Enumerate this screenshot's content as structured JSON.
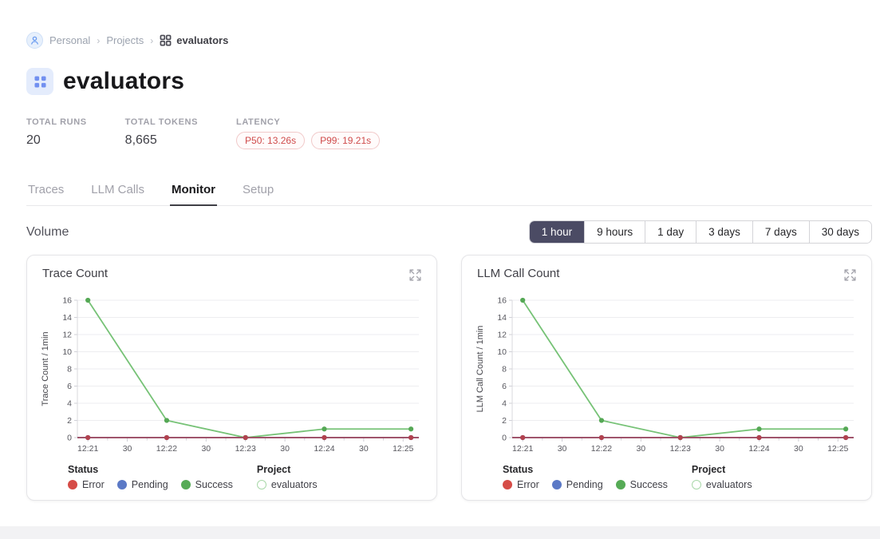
{
  "breadcrumb": {
    "separator": "›",
    "items": [
      {
        "label": "Personal"
      },
      {
        "label": "Projects"
      },
      {
        "label": "evaluators"
      }
    ]
  },
  "header": {
    "title": "evaluators"
  },
  "stats": {
    "runs": {
      "label": "TOTAL RUNS",
      "value": "20"
    },
    "tokens": {
      "label": "TOTAL TOKENS",
      "value": "8,665"
    },
    "latency": {
      "label": "LATENCY",
      "pills": [
        {
          "label": "P50: 13.26s"
        },
        {
          "label": "P99: 19.21s"
        }
      ]
    }
  },
  "tabs": [
    {
      "label": "Traces",
      "active": false
    },
    {
      "label": "LLM Calls",
      "active": false
    },
    {
      "label": "Monitor",
      "active": true
    },
    {
      "label": "Setup",
      "active": false
    }
  ],
  "section": {
    "title": "Volume"
  },
  "time_ranges": [
    {
      "label": "1 hour",
      "selected": true
    },
    {
      "label": "9 hours",
      "selected": false
    },
    {
      "label": "1 day",
      "selected": false
    },
    {
      "label": "3 days",
      "selected": false
    },
    {
      "label": "7 days",
      "selected": false
    },
    {
      "label": "30 days",
      "selected": false
    }
  ],
  "legend": {
    "groups": [
      {
        "title": "Status",
        "items": [
          {
            "label": "Error",
            "color": "#d64c47",
            "type": "filled"
          },
          {
            "label": "Pending",
            "color": "#5b79c6",
            "type": "filled"
          },
          {
            "label": "Success",
            "color": "#56ab56",
            "type": "filled"
          }
        ]
      },
      {
        "title": "Project",
        "items": [
          {
            "label": "evaluators",
            "color": "#a9d8a9",
            "type": "hollow"
          }
        ]
      }
    ]
  },
  "chart_data": [
    {
      "type": "line",
      "title": "Trace Count",
      "ylabel": "Trace Count / 1min",
      "ylim": [
        0,
        16
      ],
      "ytick_step": 2,
      "grid": true,
      "legend_position": "bottom",
      "xlim_seconds": [
        -8,
        252
      ],
      "x_seconds": [
        0,
        60,
        120,
        180,
        246
      ],
      "x_labels": [
        "12:21",
        "12:22",
        "12:23",
        "12:24",
        "12:25"
      ],
      "xticks": [
        {
          "t": 0,
          "label": "12:21"
        },
        {
          "t": 15,
          "label": ""
        },
        {
          "t": 30,
          "label": "30"
        },
        {
          "t": 45,
          "label": ""
        },
        {
          "t": 60,
          "label": "12:22"
        },
        {
          "t": 75,
          "label": ""
        },
        {
          "t": 90,
          "label": "30"
        },
        {
          "t": 105,
          "label": ""
        },
        {
          "t": 120,
          "label": "12:23"
        },
        {
          "t": 135,
          "label": ""
        },
        {
          "t": 150,
          "label": "30"
        },
        {
          "t": 165,
          "label": ""
        },
        {
          "t": 180,
          "label": "12:24"
        },
        {
          "t": 195,
          "label": ""
        },
        {
          "t": 210,
          "label": "30"
        },
        {
          "t": 225,
          "label": ""
        },
        {
          "t": 240,
          "label": "12:25"
        }
      ],
      "series": [
        {
          "name": "Pending",
          "color": "#5b79c6",
          "dot_color": "#5b79c6",
          "values": [
            0,
            0,
            0,
            0,
            0
          ],
          "full_width": true
        },
        {
          "name": "Success",
          "color": "#76c276",
          "dot_color": "#55a855",
          "values": [
            16,
            2,
            0,
            1,
            1
          ],
          "full_width": false
        },
        {
          "name": "Error",
          "color": "#a34a5e",
          "dot_color": "#b2424e",
          "values": [
            0,
            0,
            0,
            0,
            0
          ],
          "full_width": true
        }
      ]
    },
    {
      "type": "line",
      "title": "LLM Call Count",
      "ylabel": "LLM Call Count / 1min",
      "ylim": [
        0,
        16
      ],
      "ytick_step": 2,
      "grid": true,
      "legend_position": "bottom",
      "xlim_seconds": [
        -8,
        252
      ],
      "x_seconds": [
        0,
        60,
        120,
        180,
        246
      ],
      "x_labels": [
        "12:21",
        "12:22",
        "12:23",
        "12:24",
        "12:25"
      ],
      "xticks": [
        {
          "t": 0,
          "label": "12:21"
        },
        {
          "t": 15,
          "label": ""
        },
        {
          "t": 30,
          "label": "30"
        },
        {
          "t": 45,
          "label": ""
        },
        {
          "t": 60,
          "label": "12:22"
        },
        {
          "t": 75,
          "label": ""
        },
        {
          "t": 90,
          "label": "30"
        },
        {
          "t": 105,
          "label": ""
        },
        {
          "t": 120,
          "label": "12:23"
        },
        {
          "t": 135,
          "label": ""
        },
        {
          "t": 150,
          "label": "30"
        },
        {
          "t": 165,
          "label": ""
        },
        {
          "t": 180,
          "label": "12:24"
        },
        {
          "t": 195,
          "label": ""
        },
        {
          "t": 210,
          "label": "30"
        },
        {
          "t": 225,
          "label": ""
        },
        {
          "t": 240,
          "label": "12:25"
        }
      ],
      "series": [
        {
          "name": "Pending",
          "color": "#5b79c6",
          "dot_color": "#5b79c6",
          "values": [
            0,
            0,
            0,
            0,
            0
          ],
          "full_width": true
        },
        {
          "name": "Success",
          "color": "#76c276",
          "dot_color": "#55a855",
          "values": [
            16,
            2,
            0,
            1,
            1
          ],
          "full_width": false
        },
        {
          "name": "Error",
          "color": "#a34a5e",
          "dot_color": "#b2424e",
          "values": [
            0,
            0,
            0,
            0,
            0
          ],
          "full_width": true
        }
      ]
    }
  ],
  "colors": {
    "accent_blue": "#7290f0",
    "active_range_bg": "#4b4b64"
  }
}
